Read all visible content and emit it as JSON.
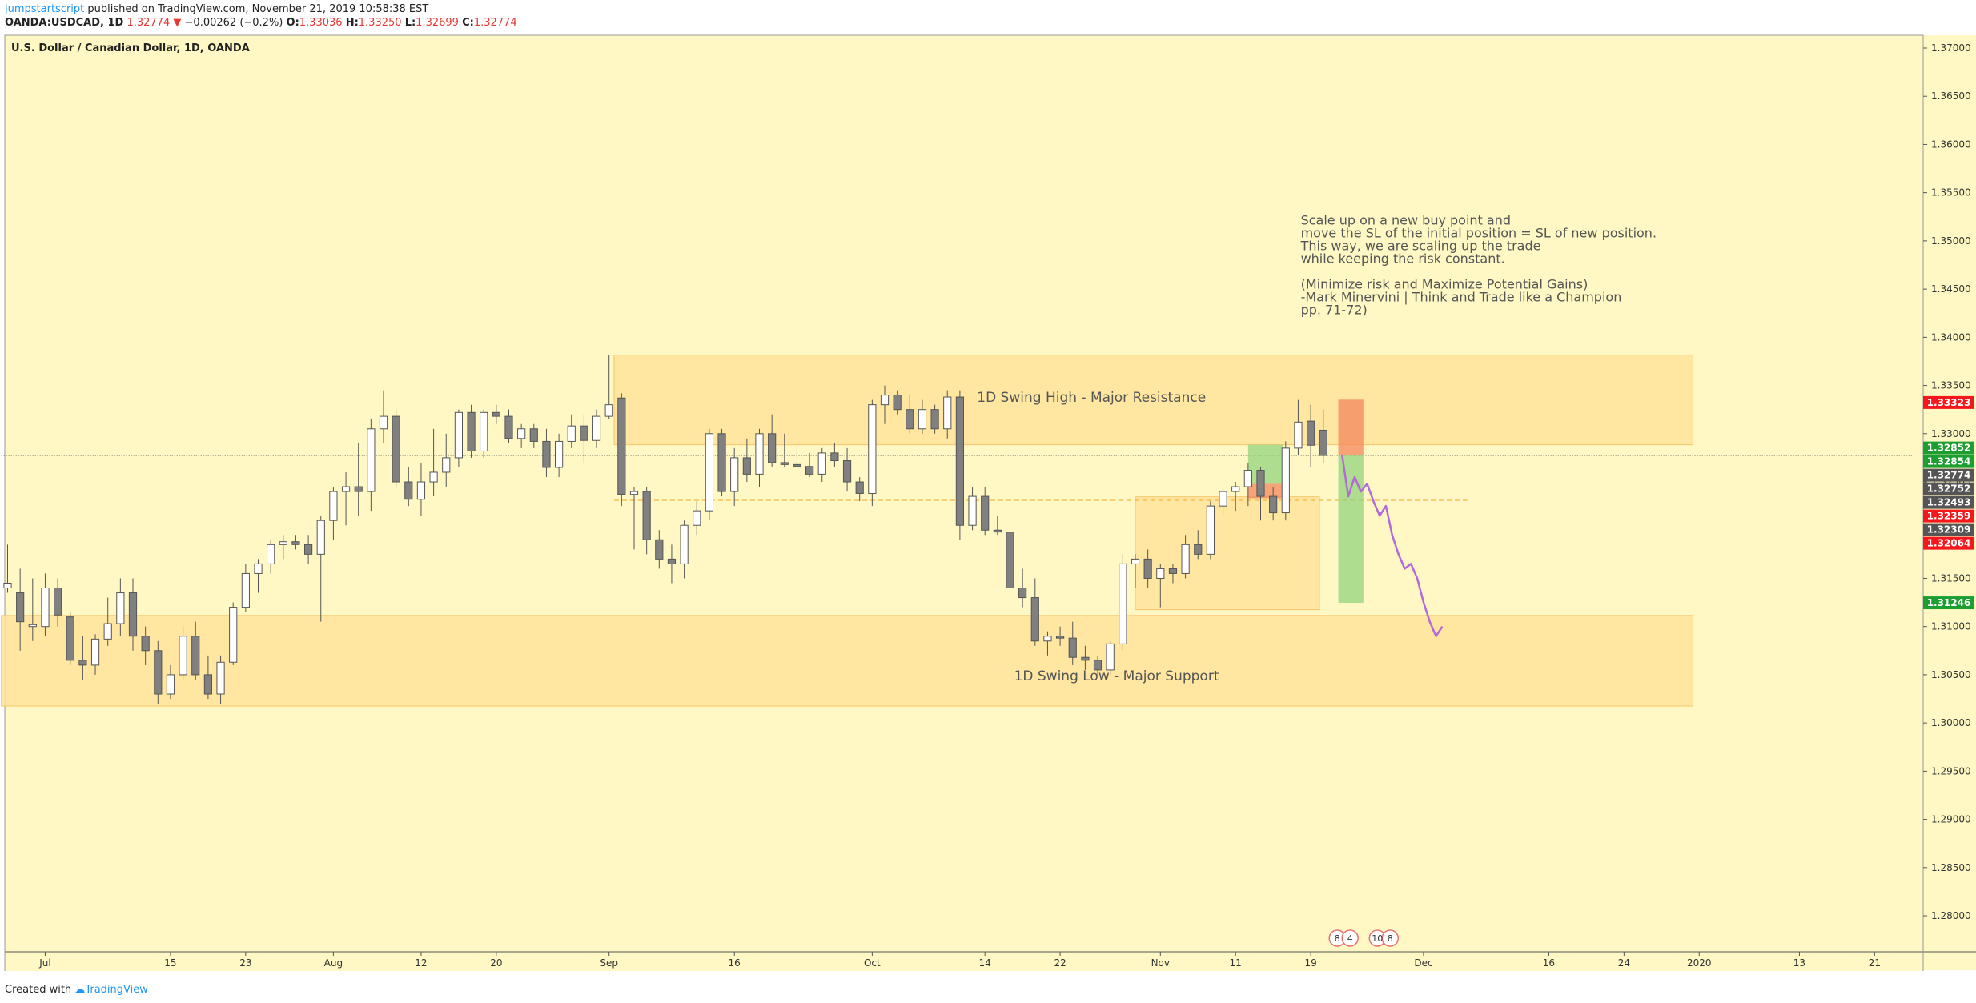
{
  "header": {
    "author": "jumpstartscript",
    "published": "published on TradingView.com, November 21, 2019 10:58:38 EST",
    "symbol": "OANDA:USDCAD, 1D",
    "last": "1.32774",
    "change_arrow": "▼",
    "change": "−0.00262 (−0.2%)",
    "o_label": "O:",
    "o_value": "1.33036",
    "h_label": "H:",
    "h_value": "1.33250",
    "l_label": "L:",
    "l_value": "1.32699",
    "c_label": "C:",
    "c_value": "1.32774"
  },
  "footer": {
    "created_with": "Created with",
    "brand": "TradingView"
  },
  "colors": {
    "chart_bg": "#fff8c4",
    "zone": "#ffe39b",
    "zone_border": "#f7c56a",
    "bull": "#ffffff",
    "bear": "#808080",
    "wick": "#555555",
    "projection": "#b36ad9",
    "badge_red": "#f4181d",
    "badge_green": "#1d9e30",
    "badge_gray": "#555555",
    "text": "#555555"
  },
  "chart_data": {
    "type": "candlestick",
    "title": "U.S. Dollar / Canadian Dollar, 1D, OANDA",
    "ylim": [
      1.2755,
      1.3717
    ],
    "y_ticks": [
      "1.37000",
      "1.36500",
      "1.36000",
      "1.35500",
      "1.35000",
      "1.34500",
      "1.34000",
      "1.33500",
      "1.33000",
      "1.32500",
      "1.32000",
      "1.31500",
      "1.31000",
      "1.30500",
      "1.30000",
      "1.29500",
      "1.29000",
      "1.28500",
      "1.28000"
    ],
    "x_ticks": [
      {
        "label": "Jul",
        "bar": 3
      },
      {
        "label": "15",
        "bar": 13
      },
      {
        "label": "23",
        "bar": 19
      },
      {
        "label": "Aug",
        "bar": 26
      },
      {
        "label": "12",
        "bar": 33
      },
      {
        "label": "20",
        "bar": 39
      },
      {
        "label": "Sep",
        "bar": 48
      },
      {
        "label": "16",
        "bar": 58
      },
      {
        "label": "Oct",
        "bar": 69
      },
      {
        "label": "14",
        "bar": 78
      },
      {
        "label": "22",
        "bar": 84
      },
      {
        "label": "Nov",
        "bar": 92
      },
      {
        "label": "11",
        "bar": 98
      },
      {
        "label": "19",
        "bar": 104
      },
      {
        "label": "Dec",
        "bar": 113
      },
      {
        "label": "16",
        "bar": 123
      },
      {
        "label": "24",
        "bar": 129
      },
      {
        "label": "2020",
        "bar": 135
      },
      {
        "label": "13",
        "bar": 143
      },
      {
        "label": "21",
        "bar": 149
      }
    ],
    "candles": [
      {
        "o": 1.314,
        "h": 1.3185,
        "l": 1.3135,
        "c": 1.3145
      },
      {
        "o": 1.3135,
        "h": 1.316,
        "l": 1.3075,
        "c": 1.3105
      },
      {
        "o": 1.31,
        "h": 1.315,
        "l": 1.3085,
        "c": 1.3102
      },
      {
        "o": 1.31,
        "h": 1.3155,
        "l": 1.309,
        "c": 1.314
      },
      {
        "o": 1.314,
        "h": 1.315,
        "l": 1.31,
        "c": 1.3112
      },
      {
        "o": 1.311,
        "h": 1.3115,
        "l": 1.306,
        "c": 1.3065
      },
      {
        "o": 1.3065,
        "h": 1.309,
        "l": 1.3045,
        "c": 1.306
      },
      {
        "o": 1.306,
        "h": 1.3092,
        "l": 1.305,
        "c": 1.3087
      },
      {
        "o": 1.3087,
        "h": 1.313,
        "l": 1.308,
        "c": 1.3103
      },
      {
        "o": 1.3103,
        "h": 1.315,
        "l": 1.309,
        "c": 1.3135
      },
      {
        "o": 1.3135,
        "h": 1.315,
        "l": 1.3075,
        "c": 1.309
      },
      {
        "o": 1.309,
        "h": 1.31,
        "l": 1.306,
        "c": 1.3075
      },
      {
        "o": 1.3075,
        "h": 1.3085,
        "l": 1.302,
        "c": 1.303
      },
      {
        "o": 1.303,
        "h": 1.306,
        "l": 1.3025,
        "c": 1.305
      },
      {
        "o": 1.305,
        "h": 1.31,
        "l": 1.3045,
        "c": 1.309
      },
      {
        "o": 1.309,
        "h": 1.3105,
        "l": 1.3045,
        "c": 1.305
      },
      {
        "o": 1.305,
        "h": 1.307,
        "l": 1.3025,
        "c": 1.303
      },
      {
        "o": 1.303,
        "h": 1.307,
        "l": 1.302,
        "c": 1.3063
      },
      {
        "o": 1.3063,
        "h": 1.3125,
        "l": 1.306,
        "c": 1.312
      },
      {
        "o": 1.312,
        "h": 1.3165,
        "l": 1.3115,
        "c": 1.3155
      },
      {
        "o": 1.3155,
        "h": 1.317,
        "l": 1.3135,
        "c": 1.3165
      },
      {
        "o": 1.3165,
        "h": 1.319,
        "l": 1.3155,
        "c": 1.3185
      },
      {
        "o": 1.3185,
        "h": 1.3195,
        "l": 1.317,
        "c": 1.3188
      },
      {
        "o": 1.3188,
        "h": 1.3195,
        "l": 1.318,
        "c": 1.3185
      },
      {
        "o": 1.3185,
        "h": 1.3195,
        "l": 1.3165,
        "c": 1.3175
      },
      {
        "o": 1.3175,
        "h": 1.3215,
        "l": 1.3105,
        "c": 1.321
      },
      {
        "o": 1.321,
        "h": 1.3245,
        "l": 1.319,
        "c": 1.324
      },
      {
        "o": 1.324,
        "h": 1.326,
        "l": 1.3205,
        "c": 1.3245
      },
      {
        "o": 1.3245,
        "h": 1.329,
        "l": 1.3215,
        "c": 1.324
      },
      {
        "o": 1.324,
        "h": 1.3315,
        "l": 1.322,
        "c": 1.3305
      },
      {
        "o": 1.3305,
        "h": 1.3345,
        "l": 1.329,
        "c": 1.3318
      },
      {
        "o": 1.3318,
        "h": 1.3325,
        "l": 1.3245,
        "c": 1.325
      },
      {
        "o": 1.325,
        "h": 1.3265,
        "l": 1.3225,
        "c": 1.3232
      },
      {
        "o": 1.3232,
        "h": 1.327,
        "l": 1.3215,
        "c": 1.325
      },
      {
        "o": 1.325,
        "h": 1.3305,
        "l": 1.3235,
        "c": 1.326
      },
      {
        "o": 1.326,
        "h": 1.33,
        "l": 1.3245,
        "c": 1.3275
      },
      {
        "o": 1.3275,
        "h": 1.3325,
        "l": 1.3265,
        "c": 1.3322
      },
      {
        "o": 1.3322,
        "h": 1.333,
        "l": 1.3275,
        "c": 1.3282
      },
      {
        "o": 1.3282,
        "h": 1.3325,
        "l": 1.3275,
        "c": 1.3322
      },
      {
        "o": 1.3322,
        "h": 1.333,
        "l": 1.331,
        "c": 1.3318
      },
      {
        "o": 1.3318,
        "h": 1.3325,
        "l": 1.329,
        "c": 1.3295
      },
      {
        "o": 1.3295,
        "h": 1.331,
        "l": 1.3285,
        "c": 1.3305
      },
      {
        "o": 1.3305,
        "h": 1.331,
        "l": 1.3285,
        "c": 1.3292
      },
      {
        "o": 1.3292,
        "h": 1.3305,
        "l": 1.3255,
        "c": 1.3265
      },
      {
        "o": 1.3265,
        "h": 1.33,
        "l": 1.3255,
        "c": 1.3292
      },
      {
        "o": 1.3292,
        "h": 1.332,
        "l": 1.3285,
        "c": 1.3308
      },
      {
        "o": 1.3308,
        "h": 1.332,
        "l": 1.327,
        "c": 1.3293
      },
      {
        "o": 1.3293,
        "h": 1.3325,
        "l": 1.3285,
        "c": 1.3318
      },
      {
        "o": 1.3318,
        "h": 1.3382,
        "l": 1.3315,
        "c": 1.333
      },
      {
        "o": 1.3337,
        "h": 1.3342,
        "l": 1.3225,
        "c": 1.3237
      },
      {
        "o": 1.3237,
        "h": 1.3245,
        "l": 1.318,
        "c": 1.324
      },
      {
        "o": 1.324,
        "h": 1.3245,
        "l": 1.3175,
        "c": 1.319
      },
      {
        "o": 1.319,
        "h": 1.32,
        "l": 1.316,
        "c": 1.317
      },
      {
        "o": 1.317,
        "h": 1.3185,
        "l": 1.3145,
        "c": 1.3165
      },
      {
        "o": 1.3165,
        "h": 1.321,
        "l": 1.315,
        "c": 1.3205
      },
      {
        "o": 1.3205,
        "h": 1.323,
        "l": 1.3195,
        "c": 1.322
      },
      {
        "o": 1.322,
        "h": 1.3305,
        "l": 1.321,
        "c": 1.33
      },
      {
        "o": 1.33,
        "h": 1.3305,
        "l": 1.3235,
        "c": 1.324
      },
      {
        "o": 1.324,
        "h": 1.3285,
        "l": 1.3225,
        "c": 1.3275
      },
      {
        "o": 1.3275,
        "h": 1.3295,
        "l": 1.325,
        "c": 1.3258
      },
      {
        "o": 1.3258,
        "h": 1.3305,
        "l": 1.3245,
        "c": 1.33
      },
      {
        "o": 1.33,
        "h": 1.332,
        "l": 1.3265,
        "c": 1.327
      },
      {
        "o": 1.327,
        "h": 1.33,
        "l": 1.3265,
        "c": 1.3268
      },
      {
        "o": 1.3268,
        "h": 1.329,
        "l": 1.3265,
        "c": 1.3266
      },
      {
        "o": 1.3266,
        "h": 1.328,
        "l": 1.3255,
        "c": 1.3258
      },
      {
        "o": 1.3258,
        "h": 1.3285,
        "l": 1.325,
        "c": 1.328
      },
      {
        "o": 1.328,
        "h": 1.329,
        "l": 1.3265,
        "c": 1.3272
      },
      {
        "o": 1.3272,
        "h": 1.3285,
        "l": 1.324,
        "c": 1.325
      },
      {
        "o": 1.325,
        "h": 1.3255,
        "l": 1.323,
        "c": 1.3238
      },
      {
        "o": 1.3238,
        "h": 1.3335,
        "l": 1.3225,
        "c": 1.333
      },
      {
        "o": 1.333,
        "h": 1.335,
        "l": 1.331,
        "c": 1.334
      },
      {
        "o": 1.334,
        "h": 1.3345,
        "l": 1.332,
        "c": 1.3325
      },
      {
        "o": 1.3325,
        "h": 1.334,
        "l": 1.33,
        "c": 1.3305
      },
      {
        "o": 1.3305,
        "h": 1.3335,
        "l": 1.33,
        "c": 1.3325
      },
      {
        "o": 1.3325,
        "h": 1.333,
        "l": 1.33,
        "c": 1.3305
      },
      {
        "o": 1.3305,
        "h": 1.3345,
        "l": 1.3295,
        "c": 1.3338
      },
      {
        "o": 1.3338,
        "h": 1.3345,
        "l": 1.319,
        "c": 1.3205
      },
      {
        "o": 1.3205,
        "h": 1.3245,
        "l": 1.32,
        "c": 1.3235
      },
      {
        "o": 1.3235,
        "h": 1.3245,
        "l": 1.3195,
        "c": 1.32
      },
      {
        "o": 1.32,
        "h": 1.3215,
        "l": 1.3195,
        "c": 1.3198
      },
      {
        "o": 1.3198,
        "h": 1.32,
        "l": 1.313,
        "c": 1.314
      },
      {
        "o": 1.314,
        "h": 1.316,
        "l": 1.312,
        "c": 1.313
      },
      {
        "o": 1.313,
        "h": 1.315,
        "l": 1.308,
        "c": 1.3085
      },
      {
        "o": 1.3085,
        "h": 1.3095,
        "l": 1.307,
        "c": 1.309
      },
      {
        "o": 1.309,
        "h": 1.31,
        "l": 1.308,
        "c": 1.3088
      },
      {
        "o": 1.3088,
        "h": 1.3105,
        "l": 1.306,
        "c": 1.3068
      },
      {
        "o": 1.3068,
        "h": 1.308,
        "l": 1.3055,
        "c": 1.3065
      },
      {
        "o": 1.3065,
        "h": 1.307,
        "l": 1.305,
        "c": 1.3055
      },
      {
        "o": 1.3055,
        "h": 1.3085,
        "l": 1.305,
        "c": 1.3082
      },
      {
        "o": 1.3082,
        "h": 1.3175,
        "l": 1.3075,
        "c": 1.3165
      },
      {
        "o": 1.3165,
        "h": 1.3175,
        "l": 1.314,
        "c": 1.317
      },
      {
        "o": 1.317,
        "h": 1.318,
        "l": 1.314,
        "c": 1.315
      },
      {
        "o": 1.315,
        "h": 1.3165,
        "l": 1.312,
        "c": 1.316
      },
      {
        "o": 1.316,
        "h": 1.3165,
        "l": 1.3145,
        "c": 1.3155
      },
      {
        "o": 1.3155,
        "h": 1.3195,
        "l": 1.315,
        "c": 1.3185
      },
      {
        "o": 1.3185,
        "h": 1.32,
        "l": 1.317,
        "c": 1.3175
      },
      {
        "o": 1.3175,
        "h": 1.323,
        "l": 1.317,
        "c": 1.3225
      },
      {
        "o": 1.3225,
        "h": 1.3245,
        "l": 1.3215,
        "c": 1.324
      },
      {
        "o": 1.324,
        "h": 1.325,
        "l": 1.322,
        "c": 1.3245
      },
      {
        "o": 1.3245,
        "h": 1.327,
        "l": 1.3225,
        "c": 1.3262
      },
      {
        "o": 1.3262,
        "h": 1.3265,
        "l": 1.321,
        "c": 1.3235
      },
      {
        "o": 1.3235,
        "h": 1.3245,
        "l": 1.321,
        "c": 1.3218
      },
      {
        "o": 1.3218,
        "h": 1.3292,
        "l": 1.321,
        "c": 1.3285
      },
      {
        "o": 1.3285,
        "h": 1.3335,
        "l": 1.3278,
        "c": 1.3312
      },
      {
        "o": 1.3313,
        "h": 1.333,
        "l": 1.3265,
        "c": 1.3288
      },
      {
        "o": 1.33036,
        "h": 1.3325,
        "l": 1.32699,
        "c": 1.32774
      }
    ],
    "projection": [
      {
        "bar": 106.5,
        "y": 1.3278
      },
      {
        "bar": 107.0,
        "y": 1.3235
      },
      {
        "bar": 107.5,
        "y": 1.3255
      },
      {
        "bar": 108.0,
        "y": 1.324
      },
      {
        "bar": 108.5,
        "y": 1.3248
      },
      {
        "bar": 109.0,
        "y": 1.323
      },
      {
        "bar": 109.5,
        "y": 1.3215
      },
      {
        "bar": 110.0,
        "y": 1.3225
      },
      {
        "bar": 110.5,
        "y": 1.3195
      },
      {
        "bar": 111.0,
        "y": 1.3175
      },
      {
        "bar": 111.5,
        "y": 1.316
      },
      {
        "bar": 112.0,
        "y": 1.3165
      },
      {
        "bar": 112.5,
        "y": 1.315
      },
      {
        "bar": 113.0,
        "y": 1.3125
      },
      {
        "bar": 113.5,
        "y": 1.3105
      },
      {
        "bar": 114.0,
        "y": 1.309
      },
      {
        "bar": 114.5,
        "y": 1.31
      }
    ],
    "zones": [
      {
        "label": "1D Swing High - Major Resistance",
        "from_bar": 48.4,
        "to_bar": 134.5,
        "top": 1.33815,
        "bottom": 1.32885
      },
      {
        "label": "1D Swing Low - Major Support",
        "from_bar": -0.5,
        "to_bar": 134.5,
        "top": 1.31115,
        "bottom": 1.30175
      },
      {
        "label": "",
        "from_bar": 90,
        "to_bar": 104.7,
        "top": 1.32345,
        "bottom": 1.31175
      }
    ],
    "positions": [
      {
        "kind": "profit",
        "from_bar": 99.0,
        "to_bar": 101.8,
        "top": 1.32885,
        "bottom": 1.3248
      },
      {
        "kind": "stop",
        "from_bar": 99.0,
        "to_bar": 101.8,
        "top": 1.3248,
        "bottom": 1.3233
      },
      {
        "kind": "profit",
        "from_bar": 106.2,
        "to_bar": 108.2,
        "top": 1.32774,
        "bottom": 1.31246
      },
      {
        "kind": "stop",
        "from_bar": 106.2,
        "to_bar": 108.2,
        "top": 1.33353,
        "bottom": 1.32774
      }
    ],
    "hlines": [
      {
        "price": 1.32774,
        "style": "dotted",
        "from_bar": -0.5,
        "to_bar": 152
      },
      {
        "price": 1.32309,
        "style": "dashed",
        "from_bar": 48.4,
        "to_bar": 116.5
      }
    ],
    "zone_labels": [
      {
        "text": "1D Swing High - Major Resistance",
        "bar": 86.5,
        "price": 1.3333
      },
      {
        "text": "1D Swing Low - Major Support",
        "bar": 88.5,
        "price": 1.3044
      }
    ],
    "annotation": {
      "lines": [
        "Scale up on a new buy point and",
        "move the SL of the initial position = SL of new position.",
        "This way, we are scaling up the trade",
        "while keeping the risk constant.",
        "",
        "(Minimize risk and Maximize Potential Gains)",
        "-Mark Minervini | Think and Trade like a Champion",
        "pp. 71-72)"
      ],
      "bar": 103.2,
      "price": 1.3517
    },
    "price_badges": [
      {
        "value": "1.33323",
        "color": "red"
      },
      {
        "value": "1.32852",
        "color": "green"
      },
      {
        "value": "1.32854",
        "color": "green"
      },
      {
        "value": "1.32774",
        "color": "gray"
      },
      {
        "value": "1.32752",
        "color": "gray"
      },
      {
        "value": "1.32493",
        "color": "gray"
      },
      {
        "value": "1.32359",
        "color": "red"
      },
      {
        "value": "1.32309",
        "color": "gray"
      },
      {
        "value": "1.32064",
        "color": "red"
      },
      {
        "value": "1.31246",
        "color": "green"
      }
    ],
    "events": [
      {
        "bar": 106.5,
        "count": "8",
        "count2": "4"
      },
      {
        "bar": 109.7,
        "count": "10",
        "count2": "8"
      }
    ]
  }
}
